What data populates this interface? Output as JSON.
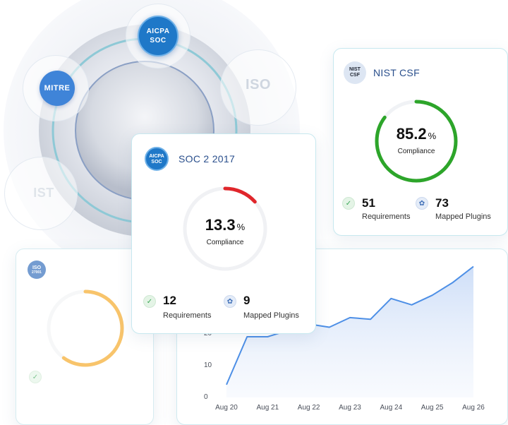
{
  "badges": {
    "aicpa_line1": "AICPA",
    "aicpa_line2": "SOC",
    "mitre": "MITRE",
    "iso": "ISO",
    "nist": "IST"
  },
  "colors": {
    "accent_blue": "#2a4f8c",
    "green": "#2da52a",
    "red": "#e0262b",
    "orange": "#f4a51c",
    "chart_line": "#4d8fe6"
  },
  "nist_card": {
    "logo": "NIST CSF",
    "title": "NIST CSF",
    "percent": "85.2",
    "percent_sign": "%",
    "percent_value": 85.2,
    "percent_label": "Compliance",
    "requirements_count": "51",
    "requirements_label": "Requirements",
    "plugins_count": "73",
    "plugins_label": "Mapped Plugins"
  },
  "soc_card": {
    "logo_line1": "AICPA",
    "logo_line2": "SOC",
    "title": "SOC 2 2017",
    "percent": "13.3",
    "percent_sign": "%",
    "percent_value": 13.3,
    "percent_label": "Compliance",
    "requirements_count": "12",
    "requirements_label": "Requirements",
    "plugins_count": "9",
    "plugins_label": "Mapped Plugins"
  },
  "iso_card": {
    "logo_line1": "ISO",
    "logo_line2": "27001",
    "percent_value": 60
  },
  "chart_data": {
    "type": "area",
    "x": [
      "Aug 20",
      "Aug 21",
      "Aug 22",
      "Aug 23",
      "Aug 24",
      "Aug 25",
      "Aug 26"
    ],
    "yticks": [
      "0",
      "10",
      "20"
    ],
    "series": [
      {
        "x": [
          20,
          20.5,
          21,
          21.5,
          22,
          22.5,
          23,
          23.5,
          24,
          24.5,
          25,
          25.5,
          26
        ],
        "values": [
          4,
          19,
          19,
          21,
          23,
          22,
          25,
          24.5,
          31,
          29,
          32,
          36,
          41
        ]
      }
    ],
    "ylim": [
      0,
      42
    ]
  }
}
